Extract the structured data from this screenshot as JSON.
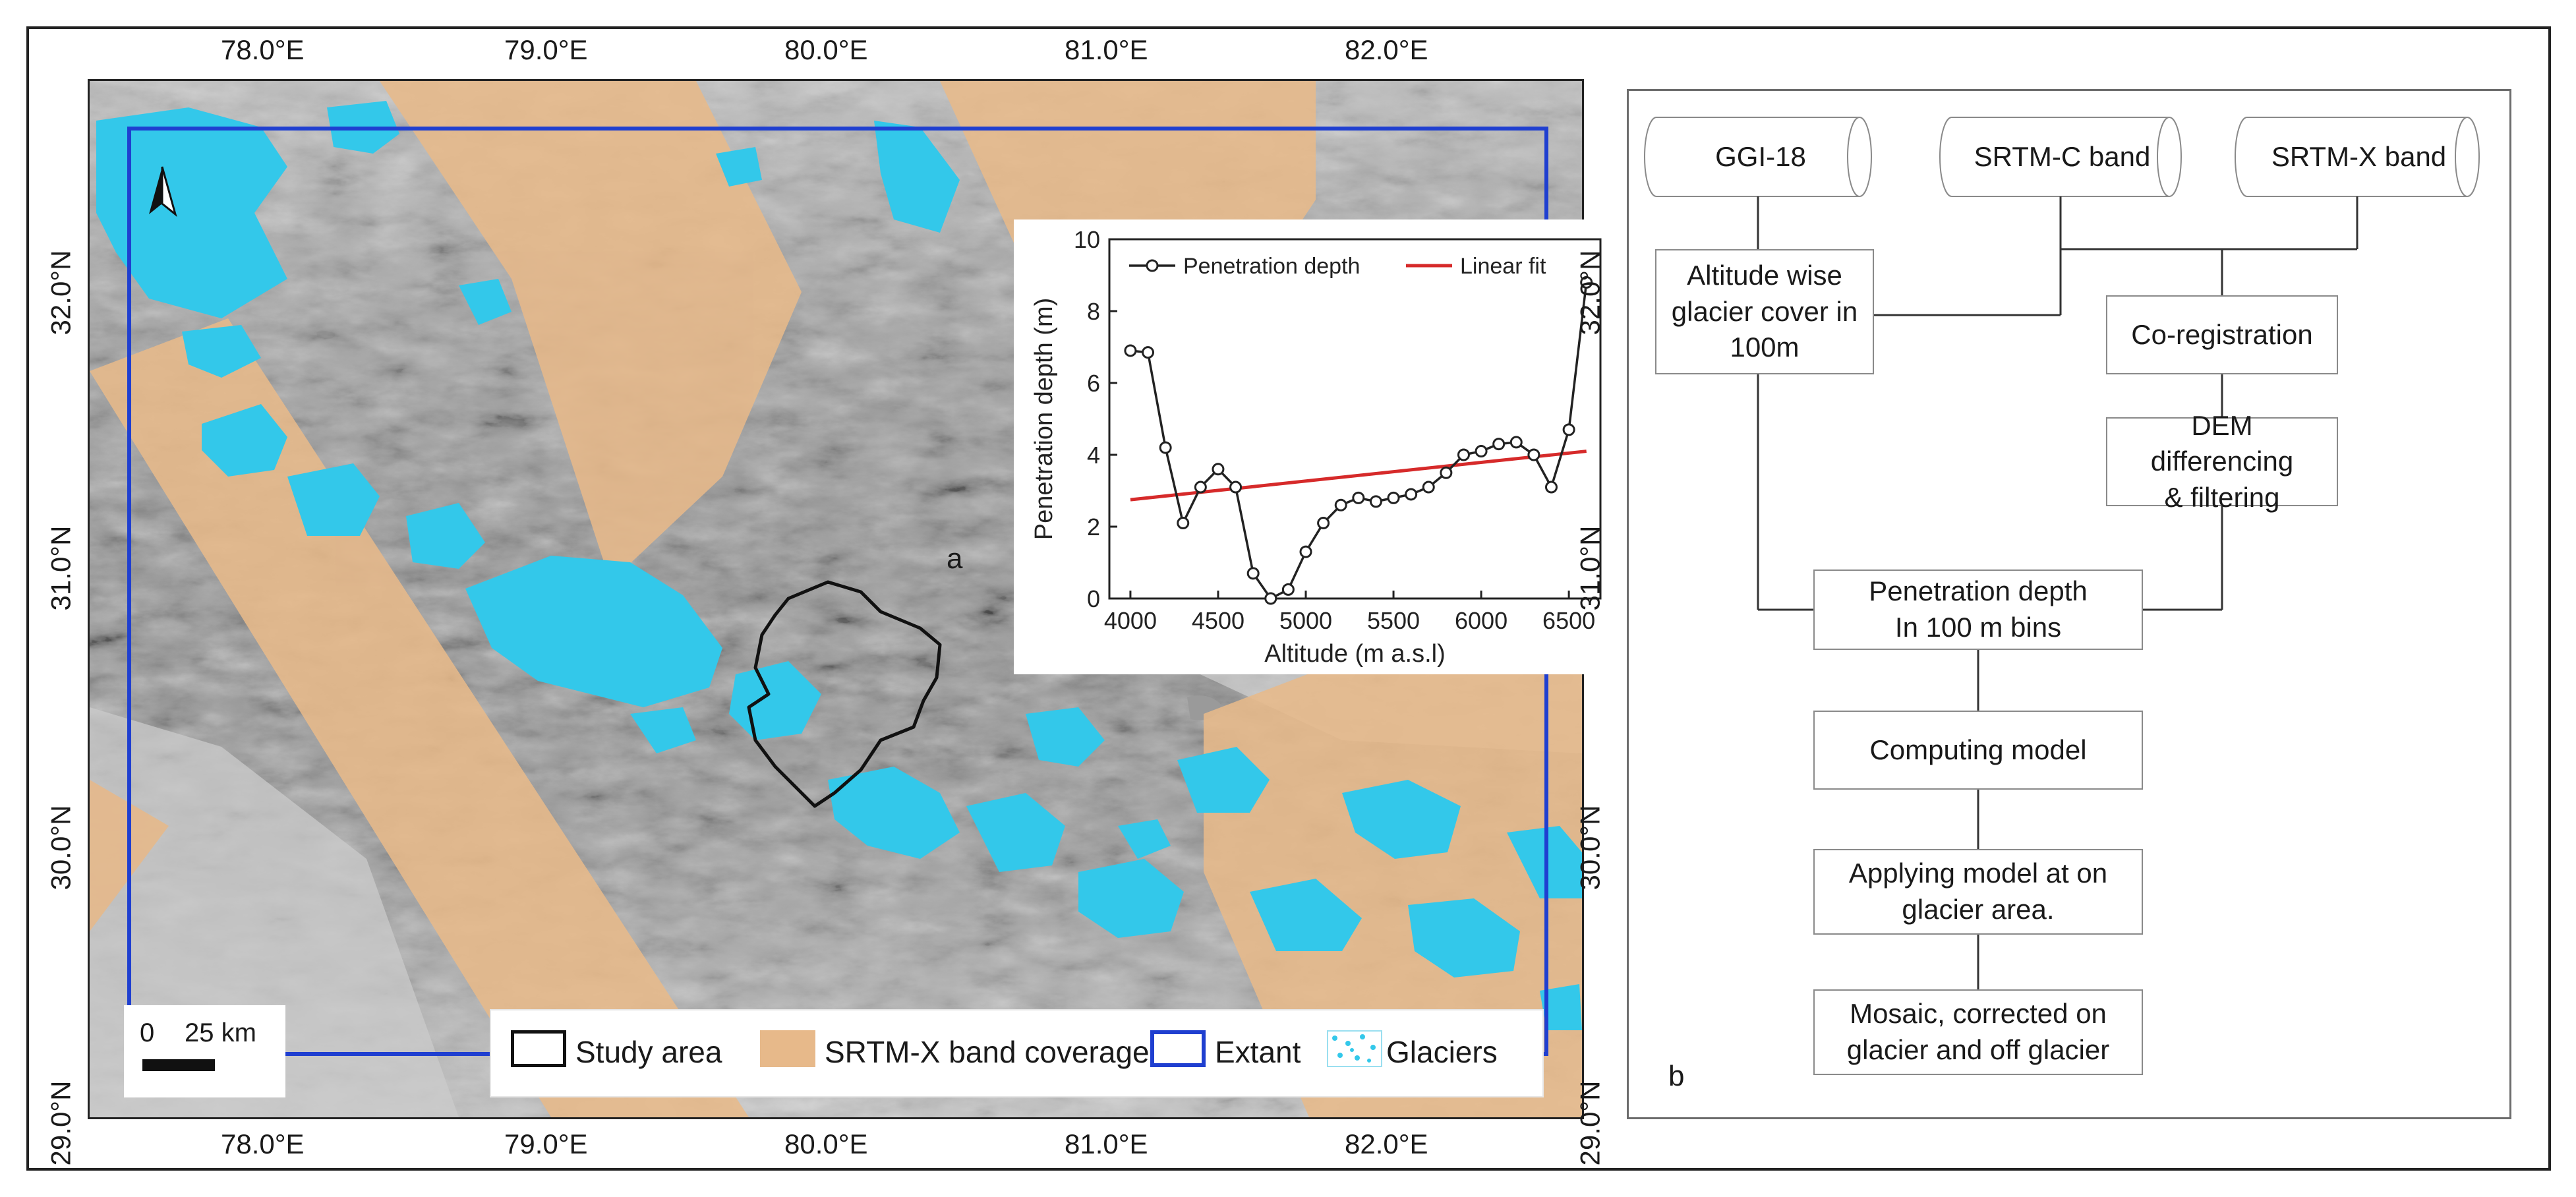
{
  "map": {
    "lon_ticks": [
      "78.0°E",
      "79.0°E",
      "80.0°E",
      "81.0°E",
      "82.0°E"
    ],
    "lat_ticks": [
      "32.0°N",
      "31.0°N",
      "30.0°N",
      "29.0°N"
    ],
    "legend": {
      "study_area": "Study area",
      "srtm_x_coverage": "SRTM-X band coverage",
      "extant": "Extant",
      "glaciers": "Glaciers"
    },
    "scale_bar": {
      "zero": "0",
      "distance": "25 km"
    },
    "colors": {
      "hillshade": "#a7a7a7",
      "srtm_x": "#e7b98a",
      "glacier": "#33c8ea",
      "extent": "#1f3fd0",
      "study_area": "#111111"
    },
    "panel_letter": "a"
  },
  "chart_data": {
    "type": "line",
    "x": [
      4000,
      4100,
      4200,
      4300,
      4400,
      4500,
      4600,
      4700,
      4800,
      4900,
      5000,
      5100,
      5200,
      5300,
      5400,
      5500,
      5600,
      5700,
      5800,
      5900,
      6000,
      6100,
      6200,
      6300,
      6400,
      6500,
      6600
    ],
    "series": [
      {
        "name": "Penetration depth",
        "values": [
          6.9,
          6.85,
          4.2,
          2.1,
          3.1,
          3.6,
          3.1,
          0.7,
          0.0,
          0.25,
          1.3,
          2.1,
          2.6,
          2.8,
          2.7,
          2.8,
          2.9,
          3.1,
          3.5,
          4.0,
          4.1,
          4.3,
          4.35,
          4.0,
          3.1,
          4.7,
          8.8
        ]
      },
      {
        "name": "Linear fit",
        "values_at_ends": [
          2.75,
          4.1
        ]
      }
    ],
    "xlabel": "Altitude (m a.s.l)",
    "ylabel": "Penetration depth (m)",
    "xticks": [
      "4000",
      "4500",
      "5000",
      "5500",
      "6000",
      "6500"
    ],
    "yticks": [
      "0",
      "2",
      "4",
      "6",
      "8",
      "10"
    ],
    "xlim": [
      3880,
      6680
    ],
    "ylim": [
      0,
      10
    ],
    "legend_position": "top",
    "colors": {
      "depth": "#222222",
      "fit": "#d62a2a"
    }
  },
  "flow": {
    "panel_letter": "b",
    "ggi": "GGI-18",
    "srtm_c": "SRTM-C band",
    "srtm_x": "SRTM-X band",
    "altitude_l1": "Altitude wise",
    "altitude_l2": "glacier cover in",
    "altitude_l3": "100m",
    "coreg": "Co-registration",
    "dem_l1": "DEM differencing",
    "dem_l2": "& filtering",
    "pen_l1": "Penetration depth",
    "pen_l2": "In 100 m bins",
    "computing": "Computing model",
    "applying_l1": "Applying model at on",
    "applying_l2": "glacier area.",
    "mosaic_l1": "Mosaic, corrected on",
    "mosaic_l2": "glacier and off glacier"
  }
}
